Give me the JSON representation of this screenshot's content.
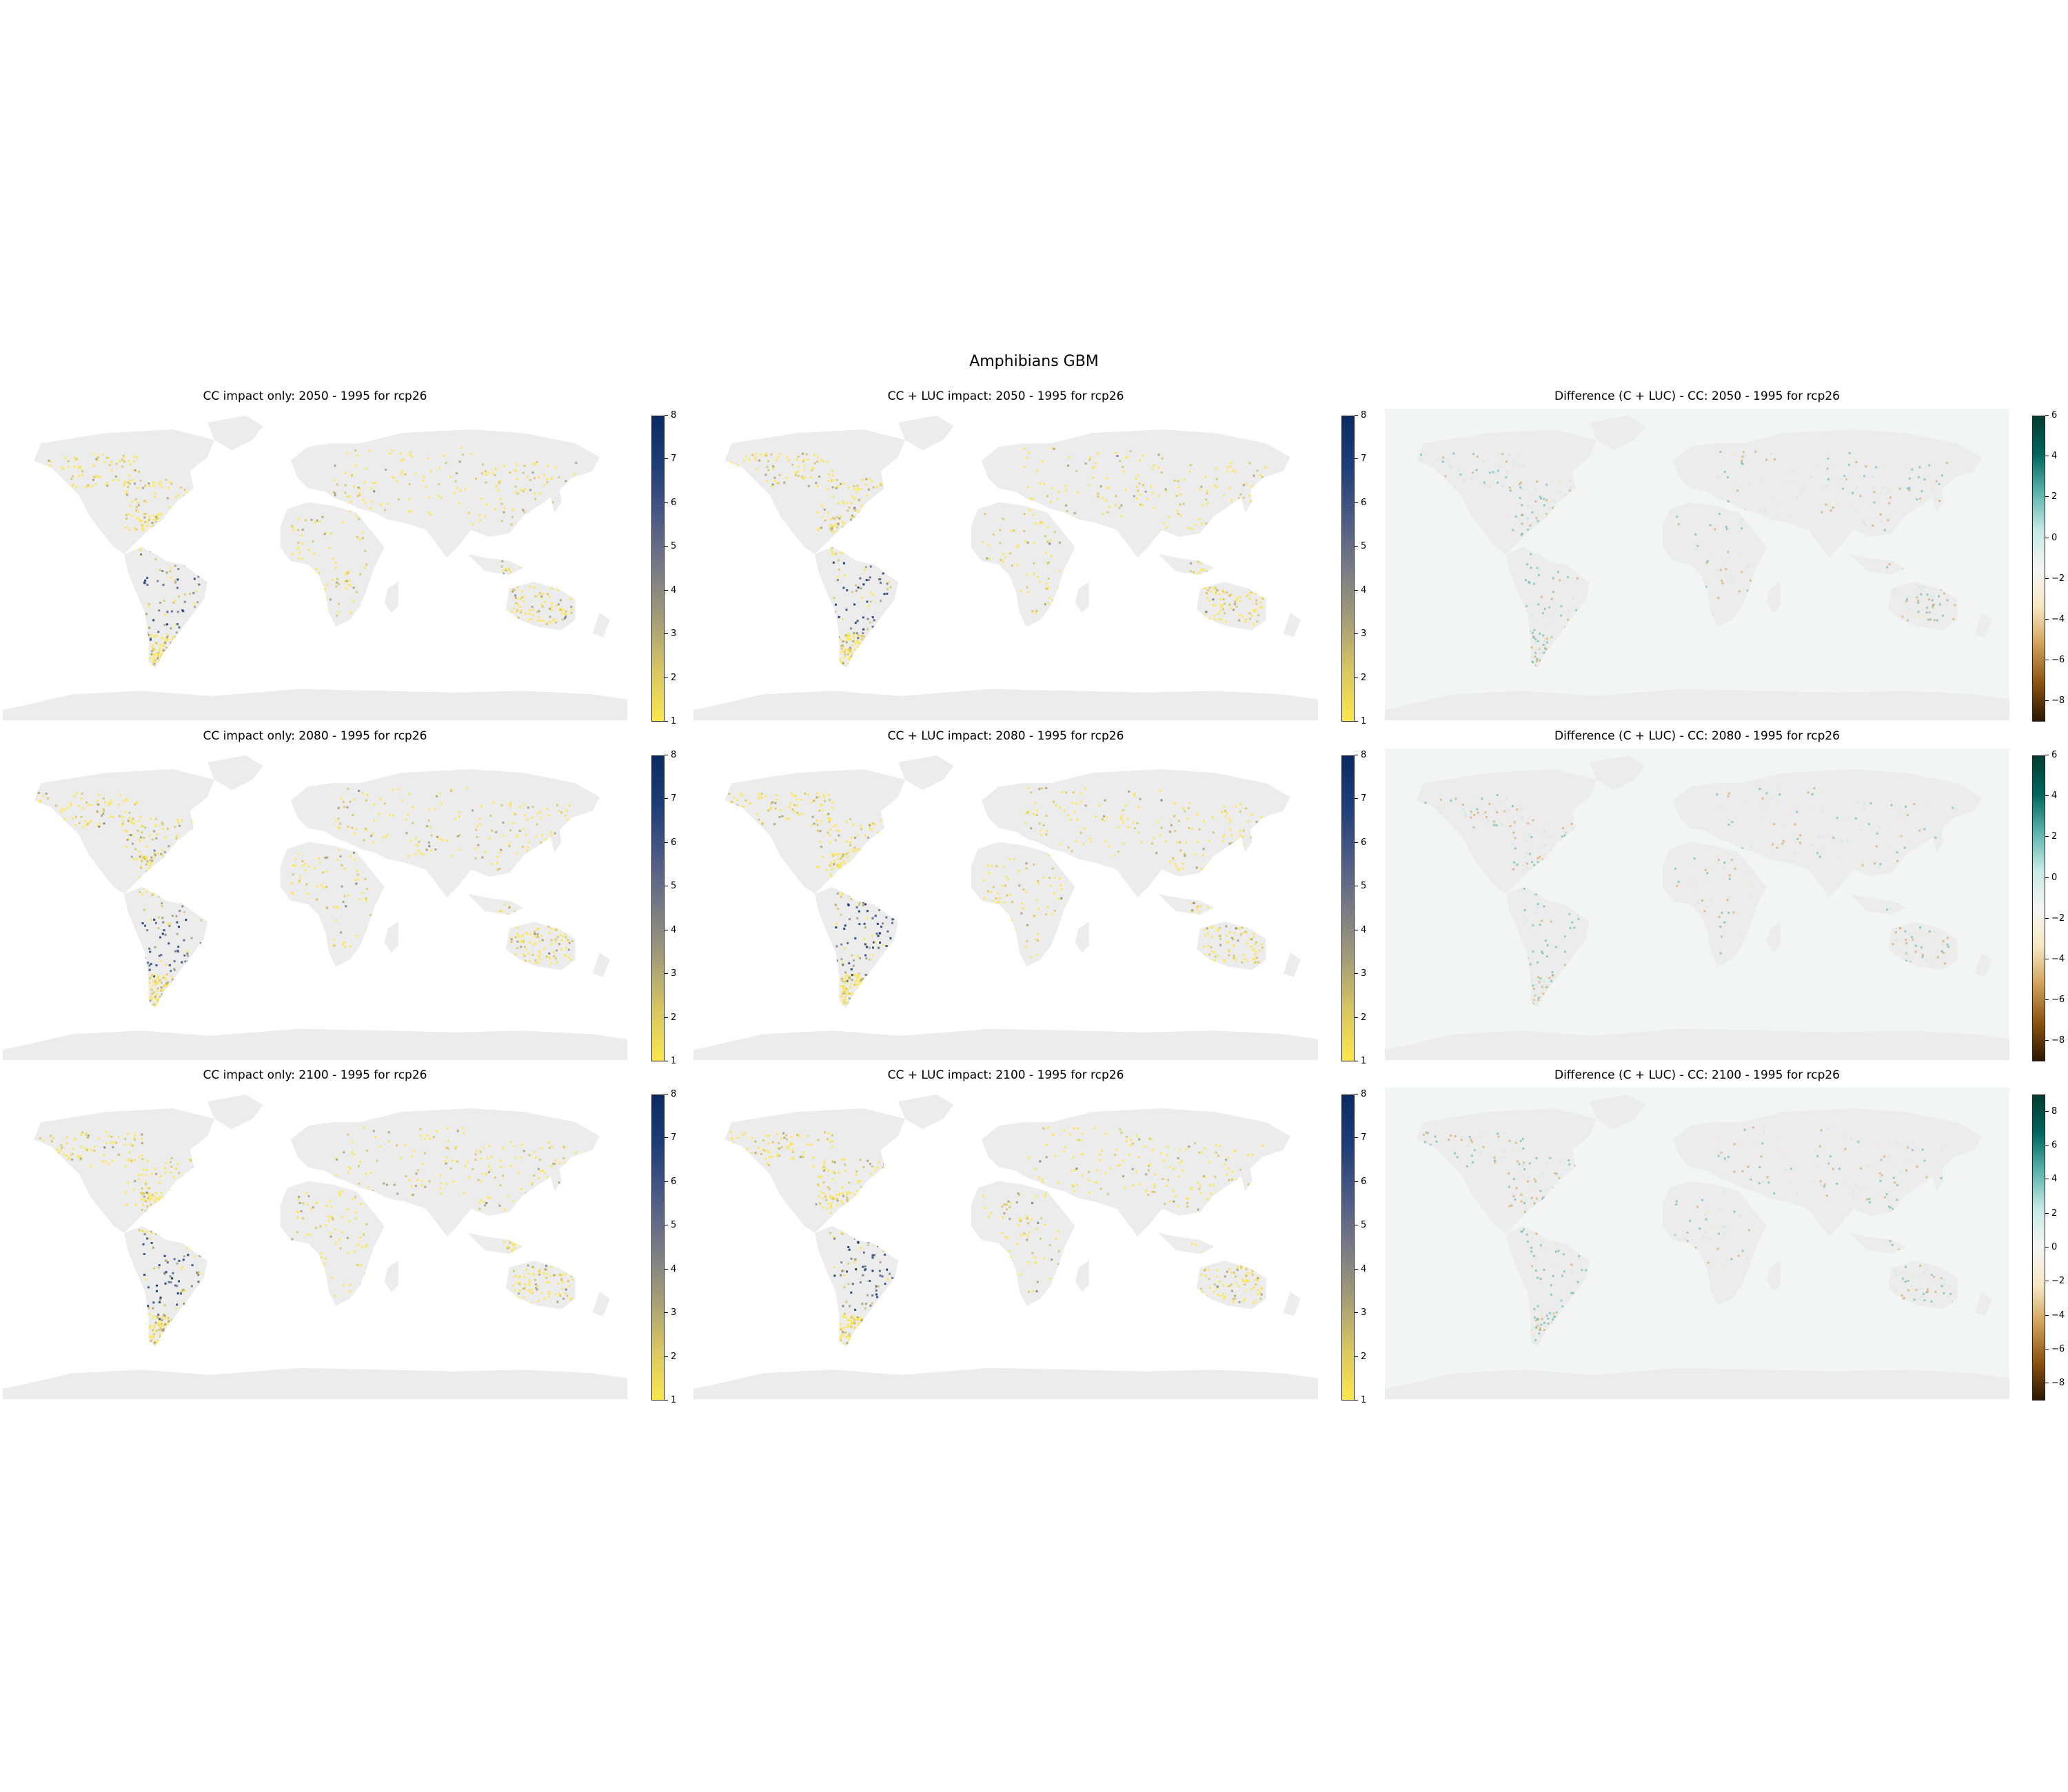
{
  "figure": {
    "suptitle": "Amphibians GBM"
  },
  "colormaps": {
    "sequential": [
      "#fde74c",
      "#d8c661",
      "#a49d77",
      "#787a85",
      "#4c5a86",
      "#1e3e7a",
      "#0b2a63"
    ],
    "diverging": [
      "#2b1702",
      "#8c5310",
      "#d1a058",
      "#f6e8c3",
      "#f5f5f5",
      "#c7eae5",
      "#5ab4ac",
      "#01665e",
      "#003c30"
    ],
    "land": "#ececec",
    "ocean_diff": "#f3f5f4"
  },
  "panels": [
    {
      "title": "CC impact only: 2050 - 1995 for rcp26",
      "type": "sequential",
      "ticks": [
        "1",
        "2",
        "3",
        "4",
        "5",
        "6",
        "7",
        "8"
      ],
      "range": [
        1,
        8
      ]
    },
    {
      "title": "CC + LUC impact: 2050 - 1995 for rcp26",
      "type": "sequential",
      "ticks": [
        "1",
        "2",
        "3",
        "4",
        "5",
        "6",
        "7",
        "8"
      ],
      "range": [
        1,
        8
      ]
    },
    {
      "title": "Difference (C + LUC) - CC: 2050 - 1995 for rcp26",
      "type": "diverging",
      "ticks": [
        "6",
        "4",
        "2",
        "0",
        "−2",
        "−4",
        "−6",
        "−8"
      ],
      "range": [
        -9,
        6
      ]
    },
    {
      "title": "CC impact only: 2080 - 1995 for rcp26",
      "type": "sequential",
      "ticks": [
        "1",
        "2",
        "3",
        "4",
        "5",
        "6",
        "7",
        "8"
      ],
      "range": [
        1,
        8
      ]
    },
    {
      "title": "CC + LUC impact: 2080 - 1995 for rcp26",
      "type": "sequential",
      "ticks": [
        "1",
        "2",
        "3",
        "4",
        "5",
        "6",
        "7",
        "8"
      ],
      "range": [
        1,
        8
      ]
    },
    {
      "title": "Difference (C + LUC) - CC: 2080 - 1995 for rcp26",
      "type": "diverging",
      "ticks": [
        "6",
        "4",
        "2",
        "0",
        "−2",
        "−4",
        "−6",
        "−8"
      ],
      "range": [
        -9,
        6
      ]
    },
    {
      "title": "CC impact only: 2100 - 1995 for rcp26",
      "type": "sequential",
      "ticks": [
        "1",
        "2",
        "3",
        "4",
        "5",
        "6",
        "7",
        "8"
      ],
      "range": [
        1,
        8
      ]
    },
    {
      "title": "CC + LUC impact: 2100 - 1995 for rcp26",
      "type": "sequential",
      "ticks": [
        "1",
        "2",
        "3",
        "4",
        "5",
        "6",
        "7",
        "8"
      ],
      "range": [
        1,
        8
      ]
    },
    {
      "title": "Difference (C + LUC) - CC: 2100 - 1995 for rcp26",
      "type": "diverging",
      "ticks": [
        "8",
        "6",
        "4",
        "2",
        "0",
        "−2",
        "−4",
        "−6",
        "−8"
      ],
      "range": [
        -9,
        9
      ]
    }
  ]
}
